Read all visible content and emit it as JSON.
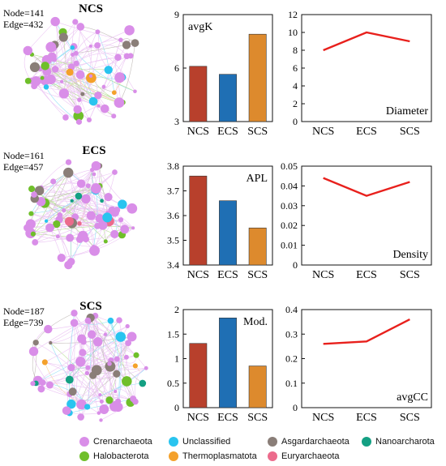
{
  "network_panels": [
    {
      "title": "NCS",
      "stats": [
        "Node=141",
        "Edge=432"
      ]
    },
    {
      "title": "ECS",
      "stats": [
        "Node=161",
        "Edge=457"
      ]
    },
    {
      "title": "SCS",
      "stats": [
        "Node=187",
        "Edge=739"
      ]
    }
  ],
  "legend": [
    {
      "label": "Crenarchaeota",
      "color": "#d98ee8"
    },
    {
      "label": "Unclassified",
      "color": "#29c4ef"
    },
    {
      "label": "Asgardarchaeota",
      "color": "#8a7e78"
    },
    {
      "label": "Nanoarcharota",
      "color": "#14a083"
    },
    {
      "label": "Halobacterota",
      "color": "#6fbf2a"
    },
    {
      "label": "Thermoplasmatota",
      "color": "#f4a12b"
    },
    {
      "label": "Euryarchaeota",
      "color": "#ec6b8c"
    }
  ],
  "chart_data": [
    {
      "type": "bar",
      "title": "avgK",
      "categories": [
        "NCS",
        "ECS",
        "SCS"
      ],
      "values": [
        6.1,
        5.65,
        7.9
      ],
      "colors": [
        "#b8402c",
        "#1f6fb4",
        "#dd8a2d"
      ],
      "ylim": [
        3,
        9
      ],
      "yticks": [
        "3",
        "6",
        "9"
      ],
      "ytick_values": [
        3,
        6,
        9
      ]
    },
    {
      "type": "line",
      "title": "Diameter",
      "categories": [
        "NCS",
        "ECS",
        "SCS"
      ],
      "values": [
        8,
        10,
        9
      ],
      "color": "#e8201c",
      "ylim": [
        0,
        12
      ],
      "yticks": [
        "0",
        "2",
        "4",
        "6",
        "8",
        "10",
        "12"
      ],
      "ytick_values": [
        0,
        2,
        4,
        6,
        8,
        10,
        12
      ]
    },
    {
      "type": "bar",
      "title": "APL",
      "categories": [
        "NCS",
        "ECS",
        "SCS"
      ],
      "values": [
        3.76,
        3.66,
        3.55
      ],
      "colors": [
        "#b8402c",
        "#1f6fb4",
        "#dd8a2d"
      ],
      "ylim": [
        3.4,
        3.8
      ],
      "yticks": [
        "3.4",
        "3.5",
        "3.6",
        "3.7",
        "3.8"
      ],
      "ytick_values": [
        3.4,
        3.5,
        3.6,
        3.7,
        3.8
      ]
    },
    {
      "type": "line",
      "title": "Density",
      "categories": [
        "NCS",
        "ECS",
        "SCS"
      ],
      "values": [
        0.044,
        0.035,
        0.042
      ],
      "color": "#e8201c",
      "ylim": [
        0,
        0.05
      ],
      "yticks": [
        "0",
        "0.01",
        "0.02",
        "0.03",
        "0.04",
        "0.05"
      ],
      "ytick_values": [
        0,
        0.01,
        0.02,
        0.03,
        0.04,
        0.05
      ]
    },
    {
      "type": "bar",
      "title": "Mod.",
      "categories": [
        "NCS",
        "ECS",
        "SCS"
      ],
      "values": [
        1.31,
        1.83,
        0.85
      ],
      "colors": [
        "#b8402c",
        "#1f6fb4",
        "#dd8a2d"
      ],
      "ylim": [
        0,
        2
      ],
      "yticks": [
        "0",
        "0.5",
        "1",
        "1.5",
        "2"
      ],
      "ytick_values": [
        0,
        0.5,
        1,
        1.5,
        2
      ]
    },
    {
      "type": "line",
      "title": "avgCC",
      "categories": [
        "NCS",
        "ECS",
        "SCS"
      ],
      "values": [
        0.26,
        0.27,
        0.36
      ],
      "color": "#e8201c",
      "ylim": [
        0,
        0.4
      ],
      "yticks": [
        "0",
        "0.1",
        "0.2",
        "0.3",
        "0.4"
      ],
      "ytick_values": [
        0,
        0.1,
        0.2,
        0.3,
        0.4
      ]
    }
  ]
}
